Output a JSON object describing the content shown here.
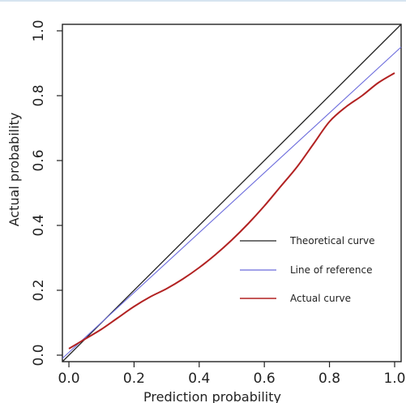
{
  "chart_data": {
    "type": "line",
    "title": "",
    "xlabel": "Prediction probability",
    "ylabel": "Actual probability",
    "xlim": [
      -0.02,
      1.02
    ],
    "ylim": [
      -0.02,
      1.02
    ],
    "x_ticks": [
      0.0,
      0.2,
      0.4,
      0.6,
      0.8,
      1.0
    ],
    "x_tick_labels": [
      "0.0",
      "0.2",
      "0.4",
      "0.6",
      "0.8",
      "1.0"
    ],
    "y_ticks": [
      0.0,
      0.2,
      0.4,
      0.6,
      0.8,
      1.0
    ],
    "y_tick_labels": [
      "0.0",
      "0.2",
      "0.4",
      "0.6",
      "0.8",
      "1.0"
    ],
    "grid": false,
    "legend_position": "bottom-right",
    "series": [
      {
        "name": "Theoretical curve",
        "color": "#222222",
        "x": [
          -0.02,
          1.02
        ],
        "y": [
          -0.02,
          1.02
        ]
      },
      {
        "name": "Line of reference",
        "color": "#6b6bdc",
        "x": [
          -0.02,
          1.02
        ],
        "y": [
          -0.01,
          0.95
        ]
      },
      {
        "name": "Actual curve",
        "color": "#b22222",
        "x": [
          0.0,
          0.05,
          0.1,
          0.15,
          0.2,
          0.25,
          0.3,
          0.35,
          0.4,
          0.45,
          0.5,
          0.55,
          0.6,
          0.65,
          0.7,
          0.75,
          0.8,
          0.85,
          0.9,
          0.95,
          1.0
        ],
        "y": [
          0.02,
          0.05,
          0.08,
          0.115,
          0.15,
          0.18,
          0.205,
          0.235,
          0.27,
          0.31,
          0.355,
          0.405,
          0.46,
          0.52,
          0.58,
          0.65,
          0.72,
          0.765,
          0.8,
          0.84,
          0.87
        ]
      }
    ]
  }
}
